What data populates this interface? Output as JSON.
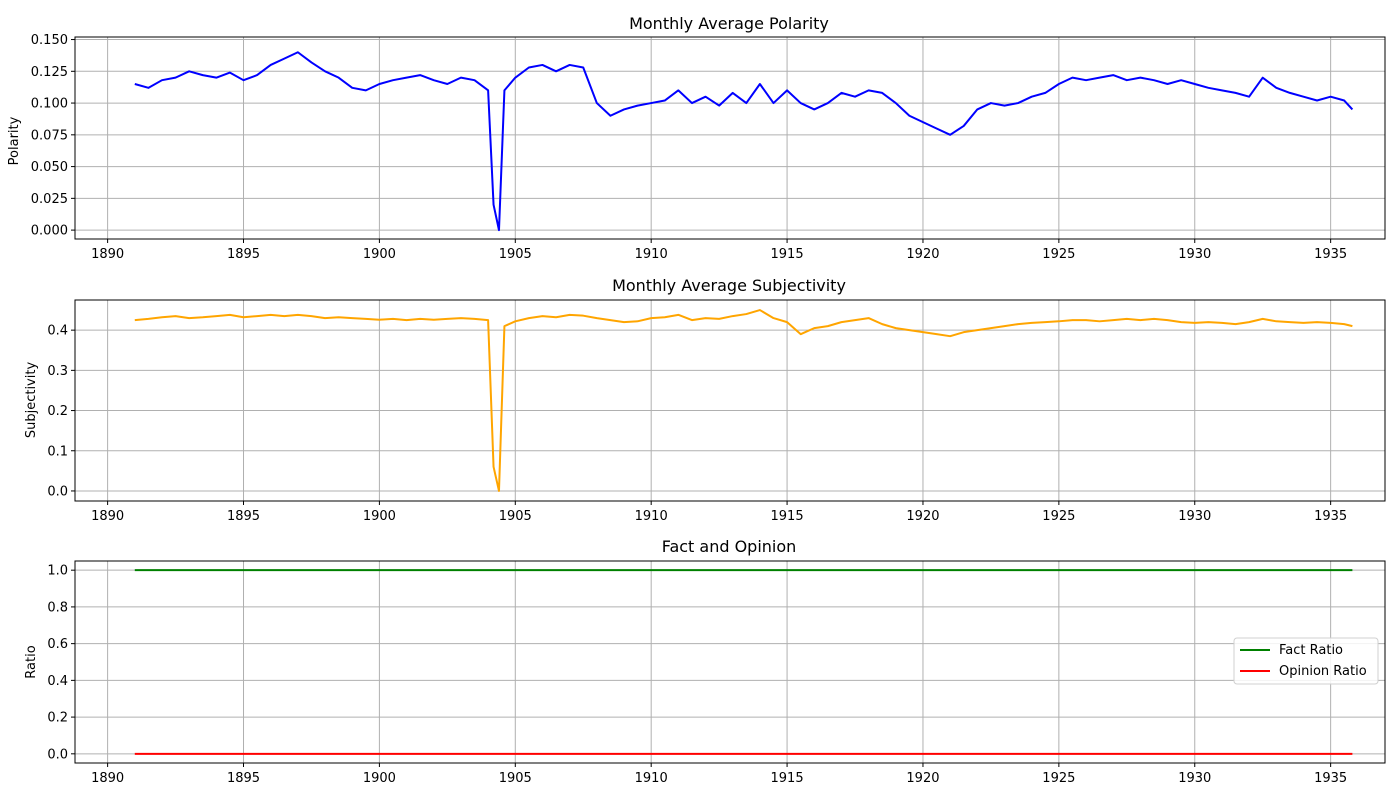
{
  "chart_data": [
    {
      "type": "line",
      "title": "Monthly Average Polarity",
      "xlabel": "",
      "ylabel": "Polarity",
      "xlim": [
        1888.8,
        1937.0
      ],
      "ylim": [
        -0.007,
        0.152
      ],
      "xticks": [
        1890,
        1895,
        1900,
        1905,
        1910,
        1915,
        1920,
        1925,
        1930,
        1935
      ],
      "xtick_labels": [
        "1890",
        "1895",
        "1900",
        "1905",
        "1910",
        "1915",
        "1920",
        "1925",
        "1930",
        "1935"
      ],
      "yticks": [
        0.0,
        0.025,
        0.05,
        0.075,
        0.1,
        0.125,
        0.15
      ],
      "ytick_labels": [
        "0.000",
        "0.025",
        "0.050",
        "0.075",
        "0.100",
        "0.125",
        "0.150"
      ],
      "grid": true,
      "series": [
        {
          "color": "#0000ff",
          "x": [
            1891.0,
            1891.5,
            1892.0,
            1892.5,
            1893.0,
            1893.5,
            1894.0,
            1894.5,
            1895.0,
            1895.5,
            1896.0,
            1896.5,
            1897.0,
            1897.5,
            1898.0,
            1898.5,
            1899.0,
            1899.5,
            1900.0,
            1900.5,
            1901.0,
            1901.5,
            1902.0,
            1902.5,
            1903.0,
            1903.5,
            1904.0,
            1904.2,
            1904.4,
            1904.6,
            1905.0,
            1905.5,
            1906.0,
            1906.5,
            1907.0,
            1907.5,
            1908.0,
            1908.5,
            1909.0,
            1909.5,
            1910.0,
            1910.5,
            1911.0,
            1911.5,
            1912.0,
            1912.5,
            1913.0,
            1913.5,
            1914.0,
            1914.5,
            1915.0,
            1915.5,
            1916.0,
            1916.5,
            1917.0,
            1917.5,
            1918.0,
            1918.5,
            1919.0,
            1919.5,
            1920.0,
            1920.5,
            1921.0,
            1921.5,
            1922.0,
            1922.5,
            1923.0,
            1923.5,
            1924.0,
            1924.5,
            1925.0,
            1925.5,
            1926.0,
            1926.5,
            1927.0,
            1927.5,
            1928.0,
            1928.5,
            1929.0,
            1929.5,
            1930.0,
            1930.5,
            1931.0,
            1931.5,
            1932.0,
            1932.5,
            1933.0,
            1933.5,
            1934.0,
            1934.5,
            1935.0,
            1935.5,
            1935.8
          ],
          "values": [
            0.115,
            0.112,
            0.118,
            0.12,
            0.125,
            0.122,
            0.12,
            0.124,
            0.118,
            0.122,
            0.13,
            0.135,
            0.14,
            0.132,
            0.125,
            0.12,
            0.112,
            0.11,
            0.115,
            0.118,
            0.12,
            0.122,
            0.118,
            0.115,
            0.12,
            0.118,
            0.11,
            0.02,
            0.0,
            0.11,
            0.12,
            0.128,
            0.13,
            0.125,
            0.13,
            0.128,
            0.1,
            0.09,
            0.095,
            0.098,
            0.1,
            0.102,
            0.11,
            0.1,
            0.105,
            0.098,
            0.108,
            0.1,
            0.115,
            0.1,
            0.11,
            0.1,
            0.095,
            0.1,
            0.108,
            0.105,
            0.11,
            0.108,
            0.1,
            0.09,
            0.085,
            0.08,
            0.075,
            0.082,
            0.095,
            0.1,
            0.098,
            0.1,
            0.105,
            0.108,
            0.115,
            0.12,
            0.118,
            0.12,
            0.122,
            0.118,
            0.12,
            0.118,
            0.115,
            0.118,
            0.115,
            0.112,
            0.11,
            0.108,
            0.105,
            0.12,
            0.112,
            0.108,
            0.105,
            0.102,
            0.105,
            0.102,
            0.095
          ]
        }
      ]
    },
    {
      "type": "line",
      "title": "Monthly Average Subjectivity",
      "xlabel": "",
      "ylabel": "Subjectivity",
      "xlim": [
        1888.8,
        1937.0
      ],
      "ylim": [
        -0.025,
        0.475
      ],
      "xticks": [
        1890,
        1895,
        1900,
        1905,
        1910,
        1915,
        1920,
        1925,
        1930,
        1935
      ],
      "xtick_labels": [
        "1890",
        "1895",
        "1900",
        "1905",
        "1910",
        "1915",
        "1920",
        "1925",
        "1930",
        "1935"
      ],
      "yticks": [
        0.0,
        0.1,
        0.2,
        0.3,
        0.4
      ],
      "ytick_labels": [
        "0.0",
        "0.1",
        "0.2",
        "0.3",
        "0.4"
      ],
      "grid": true,
      "series": [
        {
          "color": "#ffa500",
          "x": [
            1891.0,
            1891.5,
            1892.0,
            1892.5,
            1893.0,
            1893.5,
            1894.0,
            1894.5,
            1895.0,
            1895.5,
            1896.0,
            1896.5,
            1897.0,
            1897.5,
            1898.0,
            1898.5,
            1899.0,
            1899.5,
            1900.0,
            1900.5,
            1901.0,
            1901.5,
            1902.0,
            1902.5,
            1903.0,
            1903.5,
            1904.0,
            1904.2,
            1904.4,
            1904.6,
            1905.0,
            1905.5,
            1906.0,
            1906.5,
            1907.0,
            1907.5,
            1908.0,
            1908.5,
            1909.0,
            1909.5,
            1910.0,
            1910.5,
            1911.0,
            1911.5,
            1912.0,
            1912.5,
            1913.0,
            1913.5,
            1914.0,
            1914.5,
            1915.0,
            1915.5,
            1916.0,
            1916.5,
            1917.0,
            1917.5,
            1918.0,
            1918.5,
            1919.0,
            1919.5,
            1920.0,
            1920.5,
            1921.0,
            1921.5,
            1922.0,
            1922.5,
            1923.0,
            1923.5,
            1924.0,
            1924.5,
            1925.0,
            1925.5,
            1926.0,
            1926.5,
            1927.0,
            1927.5,
            1928.0,
            1928.5,
            1929.0,
            1929.5,
            1930.0,
            1930.5,
            1931.0,
            1931.5,
            1932.0,
            1932.5,
            1933.0,
            1933.5,
            1934.0,
            1934.5,
            1935.0,
            1935.5,
            1935.8
          ],
          "values": [
            0.425,
            0.428,
            0.432,
            0.435,
            0.43,
            0.432,
            0.435,
            0.438,
            0.432,
            0.435,
            0.438,
            0.435,
            0.438,
            0.435,
            0.43,
            0.432,
            0.43,
            0.428,
            0.426,
            0.428,
            0.425,
            0.428,
            0.426,
            0.428,
            0.43,
            0.428,
            0.425,
            0.06,
            0.0,
            0.41,
            0.422,
            0.43,
            0.435,
            0.432,
            0.438,
            0.436,
            0.43,
            0.425,
            0.42,
            0.422,
            0.43,
            0.432,
            0.438,
            0.425,
            0.43,
            0.428,
            0.435,
            0.44,
            0.45,
            0.43,
            0.42,
            0.39,
            0.405,
            0.41,
            0.42,
            0.425,
            0.43,
            0.415,
            0.405,
            0.4,
            0.395,
            0.39,
            0.385,
            0.395,
            0.4,
            0.405,
            0.41,
            0.415,
            0.418,
            0.42,
            0.422,
            0.425,
            0.425,
            0.422,
            0.425,
            0.428,
            0.425,
            0.428,
            0.425,
            0.42,
            0.418,
            0.42,
            0.418,
            0.415,
            0.42,
            0.428,
            0.422,
            0.42,
            0.418,
            0.42,
            0.418,
            0.415,
            0.41
          ]
        }
      ]
    },
    {
      "type": "line",
      "title": "Fact and Opinion",
      "xlabel": "",
      "ylabel": "Ratio",
      "xlim": [
        1888.8,
        1937.0
      ],
      "ylim": [
        -0.05,
        1.05
      ],
      "xticks": [
        1890,
        1895,
        1900,
        1905,
        1910,
        1915,
        1920,
        1925,
        1930,
        1935
      ],
      "xtick_labels": [
        "1890",
        "1895",
        "1900",
        "1905",
        "1910",
        "1915",
        "1920",
        "1925",
        "1930",
        "1935"
      ],
      "yticks": [
        0.0,
        0.2,
        0.4,
        0.6,
        0.8,
        1.0
      ],
      "ytick_labels": [
        "0.0",
        "0.2",
        "0.4",
        "0.6",
        "0.8",
        "1.0"
      ],
      "grid": true,
      "legend": "center-right",
      "series": [
        {
          "name": "Fact Ratio",
          "color": "#008000",
          "x": [
            1891.0,
            1935.8
          ],
          "values": [
            1.0,
            1.0
          ]
        },
        {
          "name": "Opinion Ratio",
          "color": "#ff0000",
          "x": [
            1891.0,
            1935.8
          ],
          "values": [
            0.0,
            0.0
          ]
        }
      ]
    }
  ]
}
